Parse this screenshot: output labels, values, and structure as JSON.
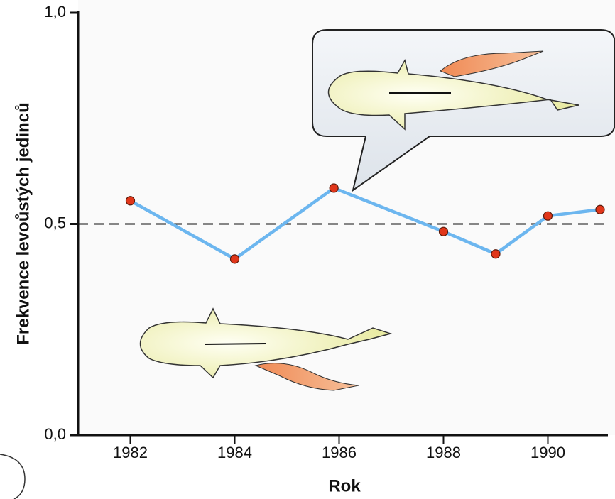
{
  "chart_data": {
    "type": "line",
    "x_label": "Rok",
    "y_label": "Frekvence levoůstých jedinců",
    "x": [
      1982,
      1984,
      1985.9,
      1988,
      1989,
      1990,
      1991
    ],
    "series": [
      {
        "name": "Frekvence",
        "color": "#6cb6ef",
        "marker_color": "#e0361a",
        "values": [
          0.555,
          0.417,
          0.585,
          0.482,
          0.429,
          0.519,
          0.534
        ]
      }
    ],
    "xlim": [
      1981,
      1991.15
    ],
    "xticks": [
      1982,
      1984,
      1986,
      1988,
      1990
    ],
    "ylim": [
      0,
      1
    ],
    "yticks": [
      {
        "value": 0,
        "label": "0,0"
      },
      {
        "value": 0.5,
        "label": "0,5"
      },
      {
        "value": 1,
        "label": "1,0"
      }
    ],
    "reference_line": 0.5
  }
}
